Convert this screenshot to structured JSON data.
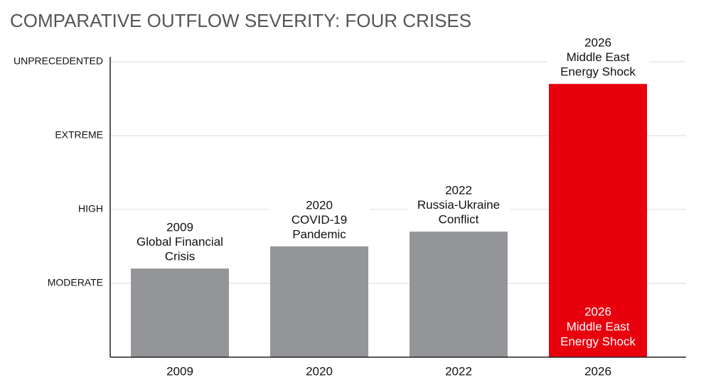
{
  "chart_data": {
    "type": "bar",
    "title": "COMPARATIVE OUTFLOW SEVERITY: FOUR CRISES",
    "categories": [
      "2009",
      "2020",
      "2022",
      "2026"
    ],
    "values": [
      1.2,
      1.5,
      1.7,
      3.7
    ],
    "colors": [
      "#939598",
      "#939598",
      "#939598",
      "#e8000d"
    ],
    "annotations": [
      [
        "2009",
        "Global Financial",
        "Crisis"
      ],
      [
        "2020",
        "COVID-19",
        "Pandemic"
      ],
      [
        "2022",
        "Russia-Ukraine",
        "Conflict"
      ],
      [
        "2026",
        "Middle East",
        "Energy Shock"
      ]
    ],
    "inside_labels": [
      null,
      null,
      null,
      [
        "2026",
        "Middle East",
        "Energy Shock"
      ]
    ],
    "ylim": [
      0,
      4
    ],
    "yticks": [
      {
        "value": 1,
        "label": "MODERATE"
      },
      {
        "value": 2,
        "label": "HIGH"
      },
      {
        "value": 3,
        "label": "EXTREME"
      },
      {
        "value": 4,
        "label": "UNPRECEDENTED"
      }
    ],
    "grid": true
  }
}
